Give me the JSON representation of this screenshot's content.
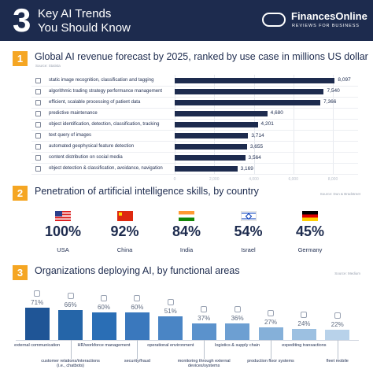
{
  "header": {
    "number": "3",
    "title_lines": [
      "Key AI Trends",
      "You Should Know"
    ],
    "logo_name": "FinancesOnline",
    "logo_tagline": "REVIEWS FOR BUSINESS"
  },
  "chart_data": [
    {
      "type": "bar",
      "orientation": "horizontal",
      "number": "1",
      "title": "Global AI revenue forecast by 2025, ranked by use case in millions US dollar",
      "source": "Source: Statista",
      "categories": [
        "static image recognition, classification and tagging",
        "algorithmic trading strategy performance management",
        "efficient, scalable processing of patient data",
        "predictive maintenance",
        "object identification, detection, classification, tracking",
        "text query of images",
        "automated geophysical feature detection",
        "content distribution on social media",
        "object detection & classification, avoidance, navigation"
      ],
      "values": [
        8097,
        7540,
        7366,
        4680,
        4201,
        3714,
        3655,
        3564,
        3169
      ],
      "value_labels": [
        "8,097",
        "7,540",
        "7,366",
        "4,680",
        "4,201",
        "3,714",
        "3,655",
        "3,564",
        "3,169"
      ],
      "color": "#1d2b4e",
      "xlim": [
        0,
        8000
      ],
      "xticks": [
        0,
        {
          "value": 2000,
          "label": "2,000"
        },
        {
          "value": 4000,
          "label": "4,000"
        },
        {
          "value": 6000,
          "label": "6,000"
        },
        {
          "value": 8000,
          "label": "8,000"
        }
      ]
    },
    {
      "type": "stat",
      "number": "2",
      "title": "Penetration of artificial intelligence skills, by country",
      "source": "Source: Dun & Bradstreet",
      "categories": [
        "USA",
        "China",
        "India",
        "Israel",
        "Germany"
      ],
      "values": [
        100,
        92,
        84,
        54,
        45
      ],
      "value_labels": [
        "100%",
        "92%",
        "84%",
        "54%",
        "45%"
      ],
      "color": "#1d2b4e"
    },
    {
      "type": "bar",
      "orientation": "vertical",
      "number": "3",
      "title": "Organizations deploying AI, by functional areas",
      "source": "Source: Medium",
      "categories": [
        "external communication",
        "customer relations/interactions (i.e., chatbots)",
        "HR/workforce management",
        "security/fraud",
        "operational environment",
        "monitoring through external devices/systems",
        "logistics & supply chain",
        "production floor systems",
        "expediting transactions",
        "fleet mobile"
      ],
      "values": [
        71,
        66,
        60,
        60,
        51,
        37,
        36,
        27,
        24,
        22
      ],
      "value_labels": [
        "71%",
        "66%",
        "60%",
        "60%",
        "51%",
        "37%",
        "36%",
        "27%",
        "24%",
        "22%"
      ],
      "colors": [
        "#1f5596",
        "#2565a8",
        "#2a6eb5",
        "#3a78bd",
        "#4a85c5",
        "#5b92cc",
        "#6d9fd2",
        "#85b0d9",
        "#9cc0e1",
        "#b8d2ea"
      ],
      "ylim": [
        0,
        100
      ]
    }
  ]
}
